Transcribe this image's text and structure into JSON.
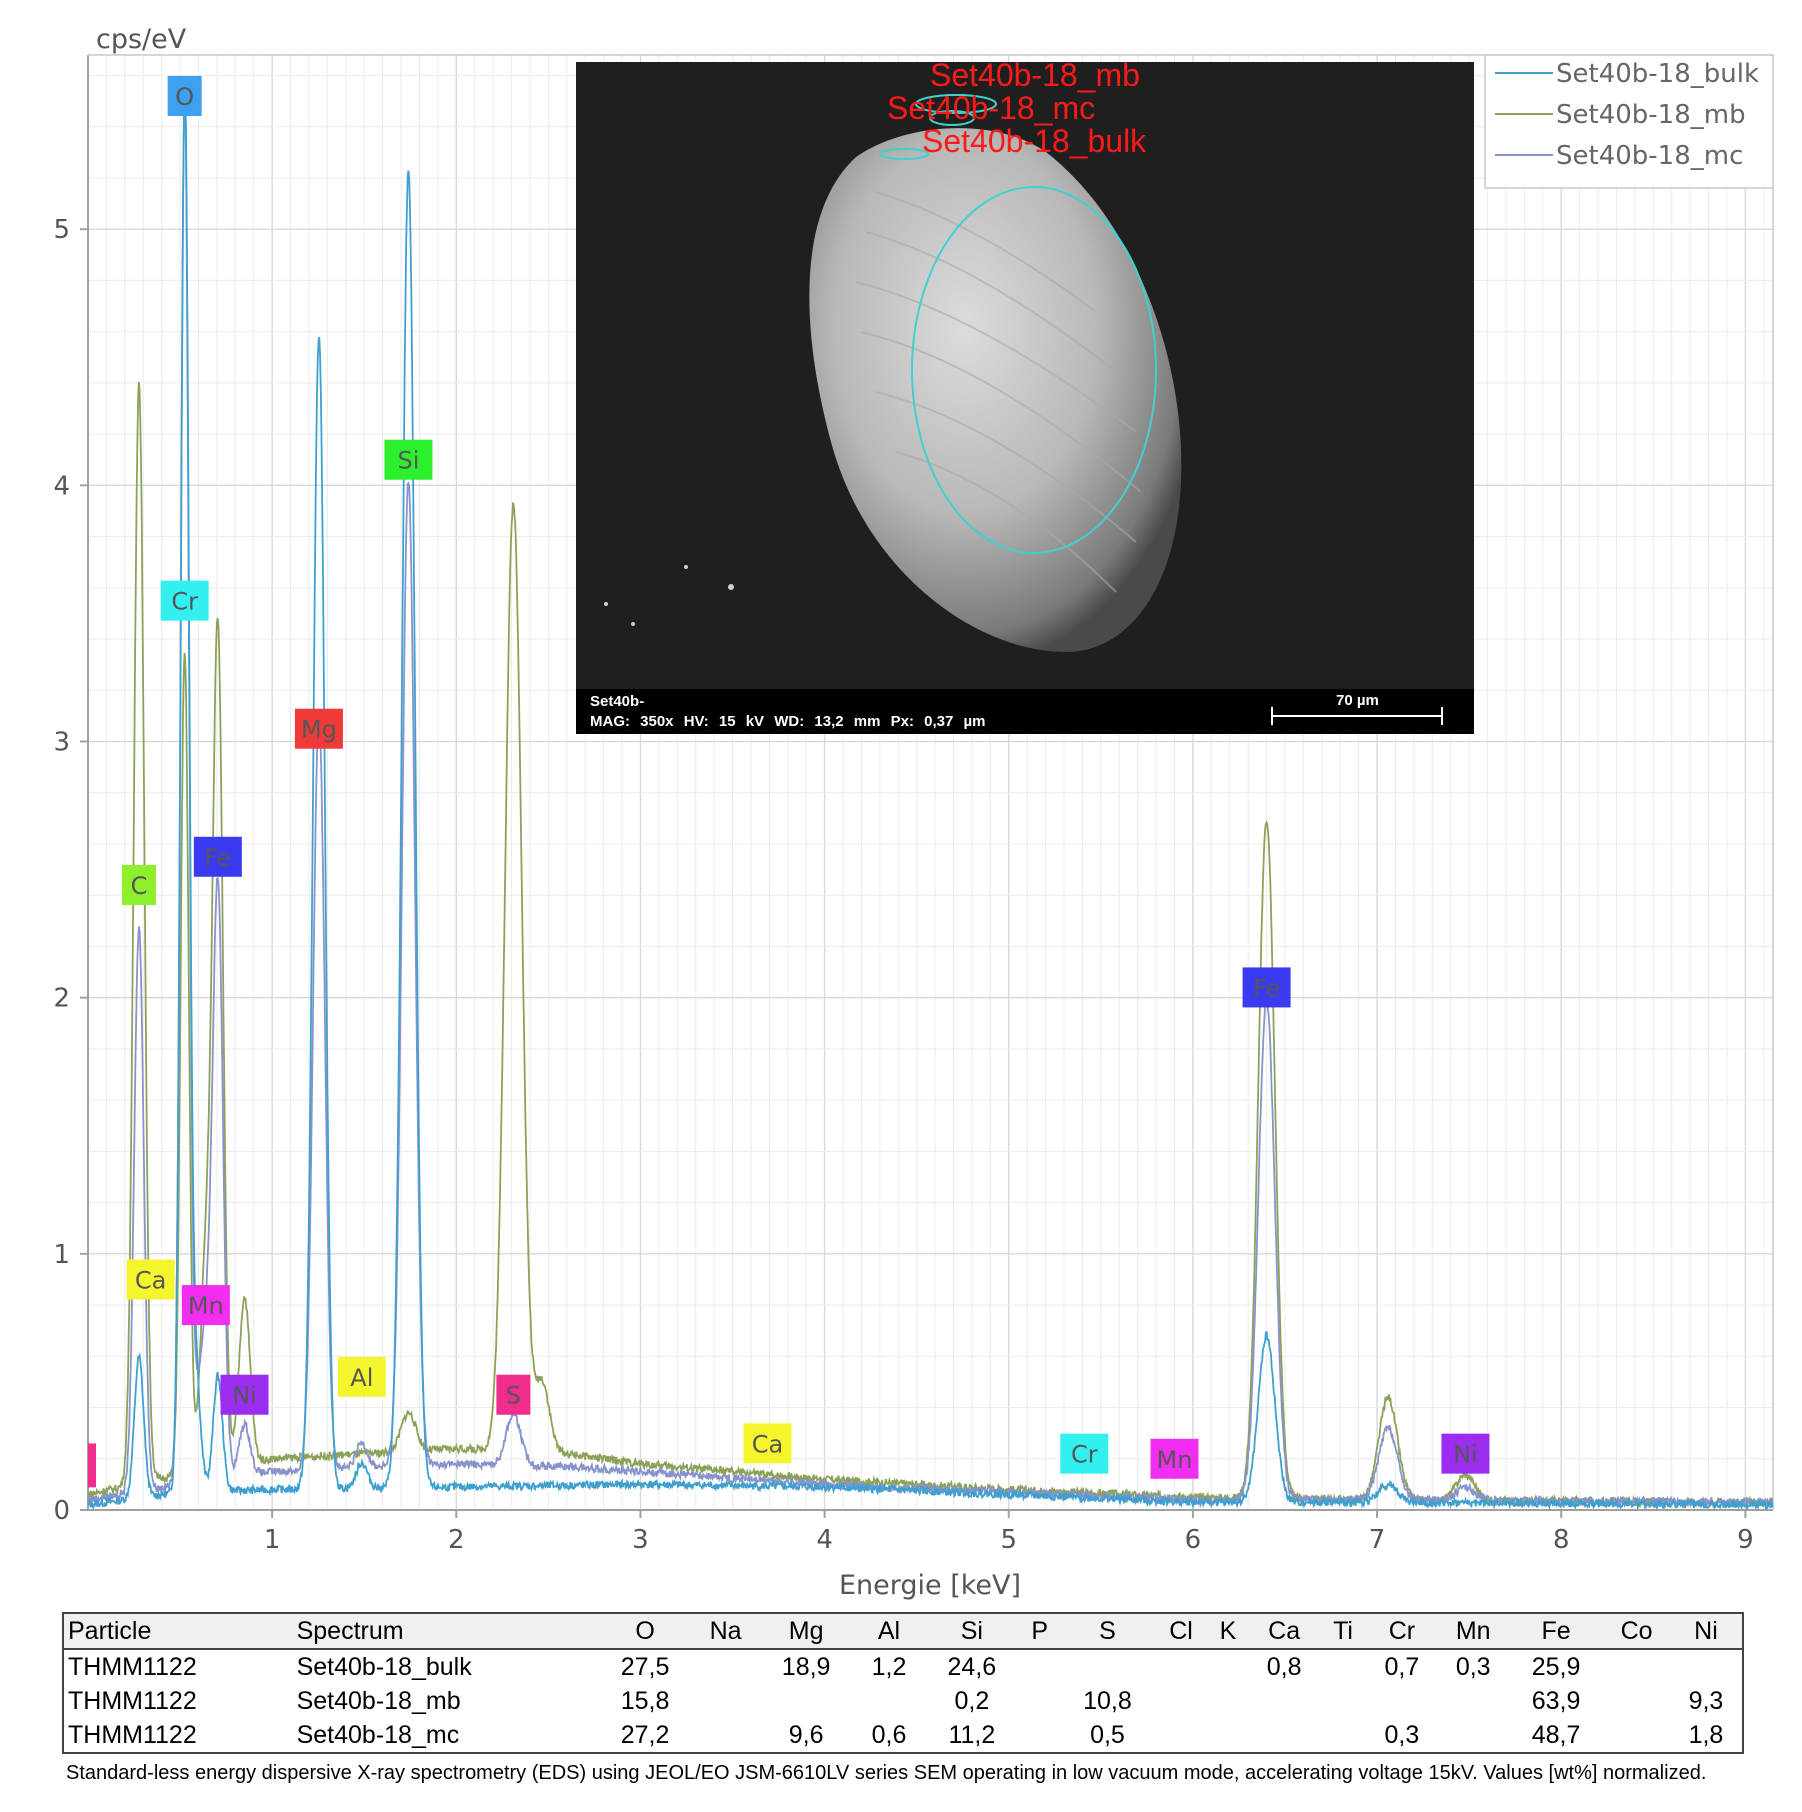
{
  "chart_data": {
    "type": "line",
    "ylabel": "cps/eV",
    "xlabel": "Energie [keV]",
    "xlim": [
      0.0,
      9.15
    ],
    "ylim": [
      0,
      5.68
    ],
    "x_ticks": [
      1,
      2,
      3,
      4,
      5,
      6,
      7,
      8,
      9
    ],
    "y_ticks": [
      0,
      1,
      2,
      3,
      4,
      5
    ],
    "grid": true,
    "legend_position": "top-right",
    "colors": {
      "grid": "#e2e2e2",
      "axis": "#a0a0a0"
    },
    "series": [
      {
        "name": "Set40b-18_bulk",
        "color": "#3fa0cf",
        "baseline": [
          [
            0.0,
            0.02
          ],
          [
            0.5,
            0.07
          ],
          [
            1.0,
            0.08
          ],
          [
            2.0,
            0.09
          ],
          [
            3.0,
            0.1
          ],
          [
            4.0,
            0.09
          ],
          [
            5.0,
            0.06
          ],
          [
            6.0,
            0.03
          ],
          [
            7.0,
            0.03
          ],
          [
            9.15,
            0.02
          ]
        ],
        "peaks": [
          {
            "x": 0.277,
            "y": 0.55,
            "w": 0.025
          },
          {
            "x": 0.525,
            "y": 5.35,
            "w": 0.022
          },
          {
            "x": 0.573,
            "y": 0.6,
            "w": 0.03
          },
          {
            "x": 0.705,
            "y": 0.45,
            "w": 0.025
          },
          {
            "x": 1.254,
            "y": 4.5,
            "w": 0.032
          },
          {
            "x": 1.487,
            "y": 0.1,
            "w": 0.03
          },
          {
            "x": 1.74,
            "y": 5.15,
            "w": 0.035
          },
          {
            "x": 6.4,
            "y": 0.65,
            "w": 0.045
          },
          {
            "x": 7.06,
            "y": 0.07,
            "w": 0.05
          }
        ]
      },
      {
        "name": "Set40b-18_mb",
        "color": "#8ca259",
        "baseline": [
          [
            0.0,
            0.06
          ],
          [
            0.5,
            0.14
          ],
          [
            1.0,
            0.2
          ],
          [
            2.0,
            0.24
          ],
          [
            2.6,
            0.22
          ],
          [
            3.0,
            0.18
          ],
          [
            4.0,
            0.12
          ],
          [
            5.0,
            0.08
          ],
          [
            6.0,
            0.05
          ],
          [
            7.0,
            0.04
          ],
          [
            9.15,
            0.03
          ]
        ],
        "peaks": [
          {
            "x": 0.277,
            "y": 4.3,
            "w": 0.028
          },
          {
            "x": 0.525,
            "y": 3.2,
            "w": 0.022
          },
          {
            "x": 0.64,
            "y": 0.8,
            "w": 0.03
          },
          {
            "x": 0.705,
            "y": 3.25,
            "w": 0.028
          },
          {
            "x": 0.85,
            "y": 0.65,
            "w": 0.03
          },
          {
            "x": 1.74,
            "y": 0.15,
            "w": 0.04
          },
          {
            "x": 2.31,
            "y": 3.7,
            "w": 0.045
          },
          {
            "x": 2.465,
            "y": 0.28,
            "w": 0.04
          },
          {
            "x": 6.4,
            "y": 2.65,
            "w": 0.045
          },
          {
            "x": 7.06,
            "y": 0.4,
            "w": 0.05
          },
          {
            "x": 7.48,
            "y": 0.1,
            "w": 0.05
          }
        ]
      },
      {
        "name": "Set40b-18_mc",
        "color": "#8893cc",
        "baseline": [
          [
            0.0,
            0.04
          ],
          [
            0.5,
            0.1
          ],
          [
            1.0,
            0.15
          ],
          [
            2.0,
            0.18
          ],
          [
            2.6,
            0.17
          ],
          [
            3.0,
            0.15
          ],
          [
            4.0,
            0.1
          ],
          [
            5.0,
            0.07
          ],
          [
            6.0,
            0.04
          ],
          [
            7.0,
            0.04
          ],
          [
            9.15,
            0.03
          ]
        ],
        "peaks": [
          {
            "x": 0.277,
            "y": 2.2,
            "w": 0.026
          },
          {
            "x": 0.525,
            "y": 5.35,
            "w": 0.022
          },
          {
            "x": 0.573,
            "y": 0.3,
            "w": 0.03
          },
          {
            "x": 0.64,
            "y": 0.55,
            "w": 0.03
          },
          {
            "x": 0.705,
            "y": 2.3,
            "w": 0.028
          },
          {
            "x": 0.85,
            "y": 0.2,
            "w": 0.03
          },
          {
            "x": 1.254,
            "y": 2.95,
            "w": 0.032
          },
          {
            "x": 1.487,
            "y": 0.1,
            "w": 0.03
          },
          {
            "x": 1.74,
            "y": 3.85,
            "w": 0.035
          },
          {
            "x": 2.31,
            "y": 0.2,
            "w": 0.04
          },
          {
            "x": 6.4,
            "y": 1.95,
            "w": 0.045
          },
          {
            "x": 7.06,
            "y": 0.28,
            "w": 0.05
          },
          {
            "x": 7.48,
            "y": 0.05,
            "w": 0.05
          }
        ]
      }
    ],
    "element_labels": [
      {
        "text": "O",
        "x": 0.525,
        "y": 5.52,
        "color": "#3da0f0"
      },
      {
        "text": "Si",
        "x": 1.74,
        "y": 4.1,
        "color": "#2df02d"
      },
      {
        "text": "Cr",
        "x": 0.525,
        "y": 3.55,
        "color": "#33f0f0"
      },
      {
        "text": "Mg",
        "x": 1.254,
        "y": 3.05,
        "color": "#f03a3a"
      },
      {
        "text": "Fe",
        "x": 0.705,
        "y": 2.55,
        "color": "#3a3af0"
      },
      {
        "text": "C",
        "x": 0.277,
        "y": 2.44,
        "color": "#8ef02d"
      },
      {
        "text": "Fe",
        "x": 6.4,
        "y": 2.04,
        "color": "#3a3af0"
      },
      {
        "text": "Ca",
        "x": 0.34,
        "y": 0.9,
        "color": "#f5f52d"
      },
      {
        "text": "Mn",
        "x": 0.64,
        "y": 0.8,
        "color": "#f02df0"
      },
      {
        "text": "Ni",
        "x": 0.85,
        "y": 0.45,
        "color": "#9a2df0"
      },
      {
        "text": "Al",
        "x": 1.487,
        "y": 0.52,
        "color": "#f5f52d"
      },
      {
        "text": "S",
        "x": 2.31,
        "y": 0.45,
        "color": "#f02d8c"
      },
      {
        "text": "Ca",
        "x": 3.69,
        "y": 0.26,
        "color": "#f5f52d"
      },
      {
        "text": "Cr",
        "x": 5.41,
        "y": 0.22,
        "color": "#33f0f0"
      },
      {
        "text": "Mn",
        "x": 5.9,
        "y": 0.2,
        "color": "#f02df0"
      },
      {
        "text": "Ni",
        "x": 7.48,
        "y": 0.22,
        "color": "#9a2df0"
      }
    ]
  },
  "sem_image": {
    "line1": "Set40b-",
    "line2": "MAG: 350x   HV: 15 kV   WD: 13,2 mm   Px: 0,37 µm",
    "scale_label": "70 µm",
    "regions": [
      "Set40b-18_mb",
      "Set40b-18_mc",
      "Set40b-18_bulk"
    ]
  },
  "table": {
    "headers": [
      "Particle",
      "Spectrum",
      "O",
      "Na",
      "Mg",
      "Al",
      "Si",
      "P",
      "S",
      "Cl",
      "K",
      "Ca",
      "Ti",
      "Cr",
      "Mn",
      "Fe",
      "Co",
      "Ni"
    ],
    "rows": [
      [
        "THMM1122",
        "Set40b-18_bulk",
        "27,5",
        "",
        "18,9",
        "1,2",
        "24,6",
        "",
        "",
        "",
        "",
        "0,8",
        "",
        "0,7",
        "0,3",
        "25,9",
        "",
        ""
      ],
      [
        "THMM1122",
        "Set40b-18_mb",
        "15,8",
        "",
        "",
        "",
        "0,2",
        "",
        "10,8",
        "",
        "",
        "",
        "",
        "",
        "",
        "63,9",
        "",
        "9,3"
      ],
      [
        "THMM1122",
        "Set40b-18_mc",
        "27,2",
        "",
        "9,6",
        "0,6",
        "11,2",
        "",
        "0,5",
        "",
        "",
        "",
        "",
        "0,3",
        "",
        "48,7",
        "",
        "1,8"
      ]
    ]
  },
  "caption": "Standard-less energy dispersive X-ray spectrometry (EDS) using JEOL/EO JSM-6610LV series SEM operating in low vacuum mode, accelerating voltage 15kV. Values [wt%] normalized."
}
